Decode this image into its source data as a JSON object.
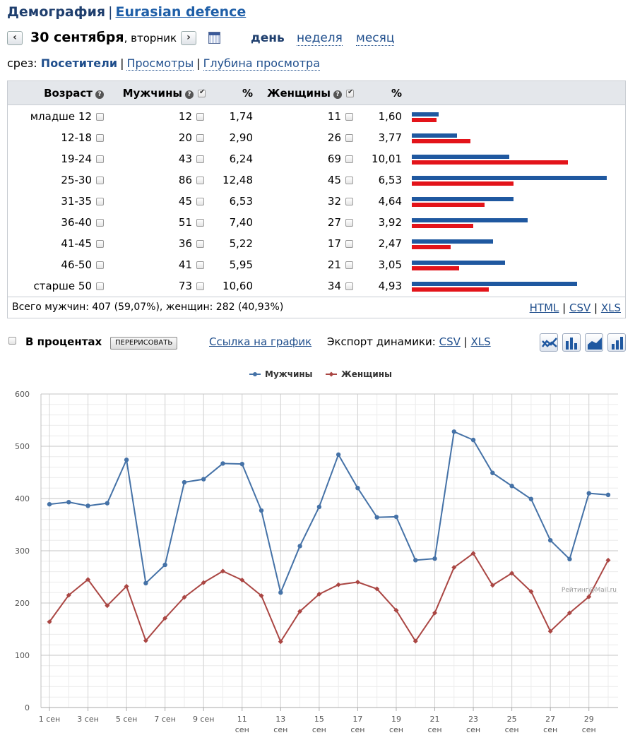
{
  "header": {
    "title": "Демография",
    "separator": "|",
    "site": "Eurasian defence"
  },
  "date_nav": {
    "prev": "‹",
    "next": "›",
    "date": "30 сентября",
    "weekday": ", вторник",
    "periods": [
      "день",
      "неделя",
      "месяц"
    ],
    "active_period": "день"
  },
  "slice": {
    "label": "срез:",
    "items": [
      "Посетители",
      "Просмотры",
      "Глубина просмотра"
    ],
    "separator": "|"
  },
  "table": {
    "headers": {
      "age": "Возраст",
      "men": "Мужчины",
      "men_pct": "%",
      "women": "Женщины",
      "women_pct": "%"
    },
    "rows": [
      {
        "age": "младше 12",
        "men": "12",
        "men_pct": "1,74",
        "women": "11",
        "women_pct": "1,60"
      },
      {
        "age": "12-18",
        "men": "20",
        "men_pct": "2,90",
        "women": "26",
        "women_pct": "3,77"
      },
      {
        "age": "19-24",
        "men": "43",
        "men_pct": "6,24",
        "women": "69",
        "women_pct": "10,01"
      },
      {
        "age": "25-30",
        "men": "86",
        "men_pct": "12,48",
        "women": "45",
        "women_pct": "6,53"
      },
      {
        "age": "31-35",
        "men": "45",
        "men_pct": "6,53",
        "women": "32",
        "women_pct": "4,64"
      },
      {
        "age": "36-40",
        "men": "51",
        "men_pct": "7,40",
        "women": "27",
        "women_pct": "3,92"
      },
      {
        "age": "41-45",
        "men": "36",
        "men_pct": "5,22",
        "women": "17",
        "women_pct": "2,47"
      },
      {
        "age": "46-50",
        "men": "41",
        "men_pct": "5,95",
        "women": "21",
        "women_pct": "3,05"
      },
      {
        "age": "старше 50",
        "men": "73",
        "men_pct": "10,60",
        "women": "34",
        "women_pct": "4,93"
      }
    ],
    "total": "Всего мужчин: 407 (59,07%), женщин: 282 (40,93%)",
    "formats": [
      "HTML",
      "CSV",
      "XLS"
    ],
    "bar_colors": {
      "men": "#1f58a0",
      "women": "#e3141a"
    }
  },
  "options": {
    "percent_label": "В процентах",
    "redraw": "ПЕРЕРИСОВАТЬ",
    "chart_link": "Ссылка на график",
    "export_label": "Экспорт динамики:",
    "export_formats": [
      "CSV",
      "XLS"
    ],
    "chart_type_icons": [
      "line-chart-icon",
      "bar-chart-icon",
      "area-chart-icon",
      "column-chart-icon"
    ]
  },
  "chart_data": {
    "type": "line",
    "x": [
      1,
      2,
      3,
      4,
      5,
      6,
      7,
      8,
      9,
      10,
      11,
      12,
      13,
      14,
      15,
      16,
      17,
      18,
      19,
      20,
      21,
      22,
      23,
      24,
      25,
      26,
      27,
      28,
      29,
      30
    ],
    "x_tick_labels": [
      {
        "x": 1,
        "l1": "1 сен",
        "l2": ""
      },
      {
        "x": 3,
        "l1": "3 сен",
        "l2": ""
      },
      {
        "x": 5,
        "l1": "5 сен",
        "l2": ""
      },
      {
        "x": 7,
        "l1": "7 сен",
        "l2": ""
      },
      {
        "x": 9,
        "l1": "9 сен",
        "l2": ""
      },
      {
        "x": 11,
        "l1": "11",
        "l2": "сен"
      },
      {
        "x": 13,
        "l1": "13",
        "l2": "сен"
      },
      {
        "x": 15,
        "l1": "15",
        "l2": "сен"
      },
      {
        "x": 17,
        "l1": "17",
        "l2": "сен"
      },
      {
        "x": 19,
        "l1": "19",
        "l2": "сен"
      },
      {
        "x": 21,
        "l1": "21",
        "l2": "сен"
      },
      {
        "x": 23,
        "l1": "23",
        "l2": "сен"
      },
      {
        "x": 25,
        "l1": "25",
        "l2": "сен"
      },
      {
        "x": 27,
        "l1": "27",
        "l2": "сен"
      },
      {
        "x": 29,
        "l1": "29",
        "l2": "сен"
      }
    ],
    "series": [
      {
        "name": "Мужчины",
        "color": "#4572a7",
        "values": [
          389,
          393,
          386,
          391,
          474,
          238,
          273,
          431,
          437,
          467,
          466,
          377,
          220,
          309,
          384,
          484,
          420,
          364,
          365,
          282,
          285,
          528,
          512,
          449,
          424,
          399,
          320,
          284,
          410,
          407
        ]
      },
      {
        "name": "Женщины",
        "color": "#aa4643",
        "values": [
          164,
          215,
          245,
          195,
          232,
          128,
          171,
          211,
          239,
          261,
          244,
          214,
          126,
          184,
          217,
          235,
          240,
          227,
          186,
          127,
          181,
          268,
          295,
          234,
          257,
          222,
          146,
          181,
          212,
          282
        ]
      }
    ],
    "ylim": [
      0,
      600
    ],
    "yticks": [
      0,
      100,
      200,
      300,
      400,
      500,
      600
    ],
    "legend_position": "top-center",
    "grid": true,
    "credit": "Рейтинг@Mail.ru"
  }
}
